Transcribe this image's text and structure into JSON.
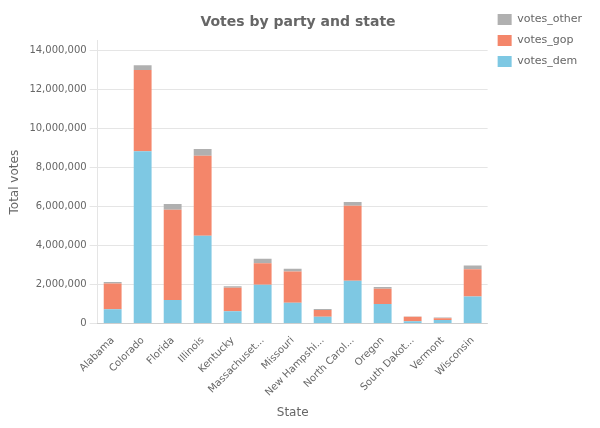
{
  "chart_data": {
    "type": "bar",
    "title": "Votes by party and state",
    "xlabel": "State",
    "ylabel": "Total votes",
    "categories": [
      "Alabama",
      "Colorado",
      "Florida",
      "Illinois",
      "Kentucky",
      "Massachuset...",
      "Missouri",
      "New Hampshi...",
      "North Carol...",
      "Oregon",
      "South Dakot...",
      "Vermont",
      "Wisconsin"
    ],
    "series": [
      {
        "name": "votes_dem",
        "color": "#7ec8e3",
        "values": [
          729547,
          8839066,
          1212000,
          4508000,
          628854,
          1995000,
          1071068,
          348526,
          2189316,
          1002106,
          117442,
          178573,
          1382536
        ]
      },
      {
        "name": "votes_gop",
        "color": "#f4866a",
        "values": [
          1318255,
          4163000,
          4617886,
          4095000,
          1202971,
          1090893,
          1594511,
          345790,
          3853000,
          782403,
          227721,
          95369,
          1405284
        ]
      },
      {
        "name": "votes_other",
        "color": "#b0b0b0",
        "values": [
          78765,
          238000,
          297000,
          350000,
          82493,
          238000,
          143000,
          49169,
          189617,
          94231,
          20850,
          40000,
          188330
        ]
      }
    ],
    "stacked": true,
    "ylim": [
      0,
      14500000
    ],
    "yticks": [
      0,
      {
        "value": 2000000,
        "label": "2,000,000"
      },
      {
        "value": 4000000,
        "label": "4,000,000"
      },
      {
        "value": 6000000,
        "label": "6,000,000"
      },
      {
        "value": 8000000,
        "label": "8,000,000"
      },
      {
        "value": 10000000,
        "label": "10,000,000"
      },
      {
        "value": 12000000,
        "label": "12,000,000"
      },
      {
        "value": 14000000,
        "label": "14,000,000"
      }
    ],
    "grid": true,
    "legend": "upper right"
  }
}
